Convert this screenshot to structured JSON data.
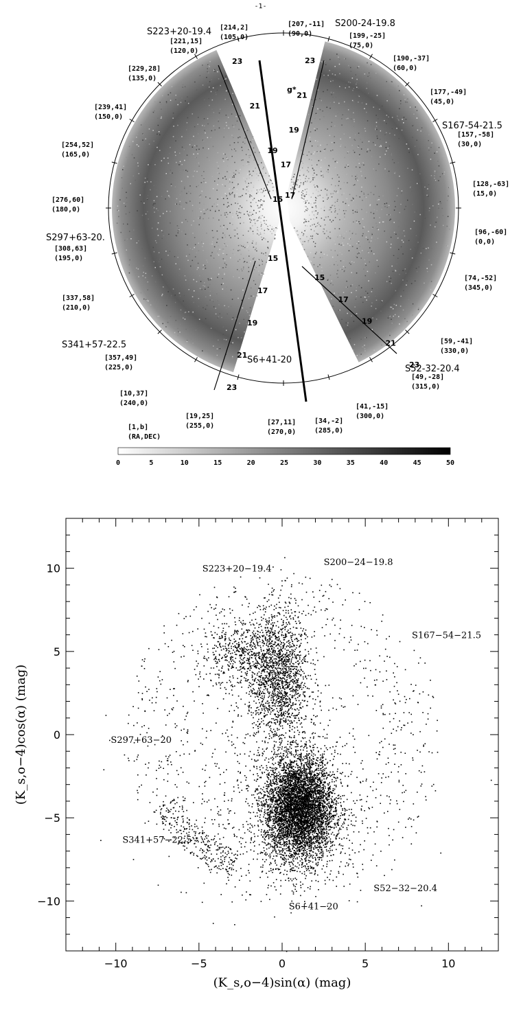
{
  "page_number": "-1-",
  "top_figure": {
    "field_labels": [
      {
        "id": "S223",
        "text": "S223+20-19.4"
      },
      {
        "id": "S200",
        "text": "S200-24-19.8"
      },
      {
        "id": "S167",
        "text": "S167-54-21.5"
      },
      {
        "id": "S297",
        "text": "S297+63-20."
      },
      {
        "id": "S341",
        "text": "S341+57-22.5"
      },
      {
        "id": "S6",
        "text": "S6+41-20"
      },
      {
        "id": "S52",
        "text": "S52-32-20.4"
      }
    ],
    "coord_labels": [
      {
        "line1": "[207,-11]",
        "line2": "(90,0)"
      },
      {
        "line1": "[214,2]",
        "line2": "(105,0)"
      },
      {
        "line1": "[199,-25]",
        "line2": "(75,0)"
      },
      {
        "line1": "[221,15]",
        "line2": "(120,0)"
      },
      {
        "line1": "[190,-37]",
        "line2": "(60,0)"
      },
      {
        "line1": "[229,28]",
        "line2": "(135,0)"
      },
      {
        "line1": "[177,-49]",
        "line2": "(45,0)"
      },
      {
        "line1": "[239,41]",
        "line2": "(150,0)"
      },
      {
        "line1": "[157,-58]",
        "line2": "(30,0)"
      },
      {
        "line1": "[254,52]",
        "line2": "(165,0)"
      },
      {
        "line1": "[128,-63]",
        "line2": "(15,0)"
      },
      {
        "line1": "[276,60]",
        "line2": "(180,0)"
      },
      {
        "line1": "[96,-60]",
        "line2": "(0,0)"
      },
      {
        "line1": "[308,63]",
        "line2": "(195,0)"
      },
      {
        "line1": "[74,-52]",
        "line2": "(345,0)"
      },
      {
        "line1": "[337,58]",
        "line2": "(210,0)"
      },
      {
        "line1": "[59,-41]",
        "line2": "(330,0)"
      },
      {
        "line1": "[357,49]",
        "line2": "(225,0)"
      },
      {
        "line1": "[49,-28]",
        "line2": "(315,0)"
      },
      {
        "line1": "[10,37]",
        "line2": "(240,0)"
      },
      {
        "line1": "[41,-15]",
        "line2": "(300,0)"
      },
      {
        "line1": "[19,25]",
        "line2": "(255,0)"
      },
      {
        "line1": "[34,-2]",
        "line2": "(285,0)"
      },
      {
        "line1": "[27,11]",
        "line2": "(270,0)"
      },
      {
        "line1": "[1,b]",
        "line2": "(RA,DEC)"
      }
    ],
    "mag_axis_labels": {
      "upper_left": [
        "23",
        "21",
        "19",
        "17"
      ],
      "upper_right": [
        "23",
        "21",
        "19",
        "17",
        "15"
      ],
      "upper_right_prefix": "g*",
      "lower_left": [
        "15",
        "17",
        "19",
        "21",
        "23"
      ],
      "lower_right": [
        "15",
        "17",
        "19",
        "21",
        "23"
      ]
    },
    "colorbar": {
      "ticks": [
        "0",
        "5",
        "10",
        "15",
        "20",
        "25",
        "30",
        "35",
        "40",
        "45",
        "50"
      ],
      "min": 0,
      "max": 50
    }
  },
  "chart_data": {
    "type": "scatter",
    "xlabel": "(K_s,o−4)sin(α) (mag)",
    "ylabel": "(K_s,o−4)cos(α) (mag)",
    "xlim": [
      -13,
      13
    ],
    "ylim": [
      -13,
      13
    ],
    "x_ticks": [
      "−10",
      "−5",
      "0",
      "5",
      "10"
    ],
    "y_ticks": [
      "10",
      "5",
      "0",
      "−5",
      "−10"
    ],
    "annotations": [
      {
        "text": "S223+20−19.4",
        "x": -4.8,
        "y": 9.8
      },
      {
        "text": "S200−24−19.8",
        "x": 2.5,
        "y": 10.2
      },
      {
        "text": "S167−54−21.5",
        "x": 7.8,
        "y": 5.8
      },
      {
        "text": "S297+63−20",
        "x": -10.3,
        "y": -0.5
      },
      {
        "text": "S341+57−22.5",
        "x": -9.6,
        "y": -6.5
      },
      {
        "text": "S6+41−20",
        "x": 0.4,
        "y": -10.5
      },
      {
        "text": "S52−32−20.4",
        "x": 5.5,
        "y": -9.4
      }
    ]
  }
}
